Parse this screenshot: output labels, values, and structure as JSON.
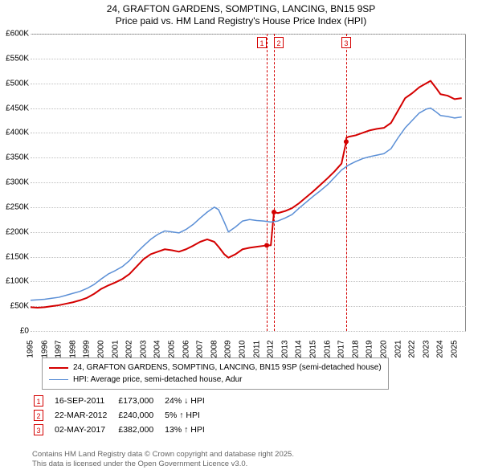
{
  "title": {
    "line1": "24, GRAFTON GARDENS, SOMPTING, LANCING, BN15 9SP",
    "line2": "Price paid vs. HM Land Registry's House Price Index (HPI)",
    "fontsize": 12
  },
  "chart": {
    "type": "line",
    "background_color": "#ffffff",
    "grid_color": "#c0c0c0",
    "axis_color": "#000000",
    "label_fontsize": 10,
    "x": {
      "min": 1995,
      "max": 2025.8,
      "ticks": [
        1995,
        1996,
        1997,
        1998,
        1999,
        2000,
        2001,
        2002,
        2003,
        2004,
        2005,
        2006,
        2007,
        2008,
        2009,
        2010,
        2011,
        2012,
        2013,
        2014,
        2015,
        2016,
        2017,
        2018,
        2019,
        2020,
        2021,
        2022,
        2023,
        2024,
        2025
      ]
    },
    "y": {
      "min": 0,
      "max": 600000,
      "ticks": [
        {
          "v": 0,
          "label": "£0"
        },
        {
          "v": 50000,
          "label": "£50K"
        },
        {
          "v": 100000,
          "label": "£100K"
        },
        {
          "v": 150000,
          "label": "£150K"
        },
        {
          "v": 200000,
          "label": "£200K"
        },
        {
          "v": 250000,
          "label": "£250K"
        },
        {
          "v": 300000,
          "label": "£300K"
        },
        {
          "v": 350000,
          "label": "£350K"
        },
        {
          "v": 400000,
          "label": "£400K"
        },
        {
          "v": 450000,
          "label": "£450K"
        },
        {
          "v": 500000,
          "label": "£500K"
        },
        {
          "v": 550000,
          "label": "£550K"
        },
        {
          "v": 600000,
          "label": "£600K"
        }
      ]
    },
    "series": [
      {
        "name": "price_paid",
        "color": "#d40000",
        "width": 2,
        "legend": "24, GRAFTON GARDENS, SOMPTING, LANCING, BN15 9SP (semi-detached house)",
        "points": [
          [
            1995,
            48000
          ],
          [
            1995.5,
            47000
          ],
          [
            1996,
            48000
          ],
          [
            1996.5,
            50000
          ],
          [
            1997,
            52000
          ],
          [
            1997.5,
            55000
          ],
          [
            1998,
            58000
          ],
          [
            1998.5,
            62000
          ],
          [
            1999,
            67000
          ],
          [
            1999.5,
            75000
          ],
          [
            2000,
            85000
          ],
          [
            2000.5,
            92000
          ],
          [
            2001,
            98000
          ],
          [
            2001.5,
            105000
          ],
          [
            2002,
            115000
          ],
          [
            2002.5,
            130000
          ],
          [
            2003,
            145000
          ],
          [
            2003.5,
            155000
          ],
          [
            2004,
            160000
          ],
          [
            2004.5,
            165000
          ],
          [
            2005,
            163000
          ],
          [
            2005.5,
            160000
          ],
          [
            2006,
            165000
          ],
          [
            2006.5,
            172000
          ],
          [
            2007,
            180000
          ],
          [
            2007.5,
            185000
          ],
          [
            2008,
            180000
          ],
          [
            2008.3,
            170000
          ],
          [
            2008.7,
            155000
          ],
          [
            2009,
            148000
          ],
          [
            2009.5,
            155000
          ],
          [
            2010,
            165000
          ],
          [
            2010.5,
            168000
          ],
          [
            2011,
            170000
          ],
          [
            2011.5,
            172000
          ],
          [
            2011.71,
            173000
          ],
          [
            2011.72,
            173000
          ],
          [
            2012,
            173000
          ],
          [
            2012.22,
            240000
          ],
          [
            2012.23,
            240000
          ],
          [
            2012.5,
            238000
          ],
          [
            2013,
            242000
          ],
          [
            2013.5,
            248000
          ],
          [
            2014,
            258000
          ],
          [
            2014.5,
            270000
          ],
          [
            2015,
            282000
          ],
          [
            2015.5,
            295000
          ],
          [
            2016,
            308000
          ],
          [
            2016.5,
            322000
          ],
          [
            2017,
            338000
          ],
          [
            2017.33,
            382000
          ],
          [
            2017.34,
            390000
          ],
          [
            2017.5,
            392000
          ],
          [
            2018,
            395000
          ],
          [
            2018.5,
            400000
          ],
          [
            2019,
            405000
          ],
          [
            2019.5,
            408000
          ],
          [
            2020,
            410000
          ],
          [
            2020.5,
            420000
          ],
          [
            2021,
            445000
          ],
          [
            2021.5,
            470000
          ],
          [
            2022,
            480000
          ],
          [
            2022.5,
            492000
          ],
          [
            2023,
            500000
          ],
          [
            2023.3,
            505000
          ],
          [
            2023.7,
            490000
          ],
          [
            2024,
            478000
          ],
          [
            2024.5,
            475000
          ],
          [
            2025,
            468000
          ],
          [
            2025.5,
            470000
          ]
        ]
      },
      {
        "name": "hpi",
        "color": "#5b8fd6",
        "width": 1.5,
        "legend": "HPI: Average price, semi-detached house, Adur",
        "points": [
          [
            1995,
            62000
          ],
          [
            1995.5,
            63000
          ],
          [
            1996,
            64000
          ],
          [
            1996.5,
            66000
          ],
          [
            1997,
            68000
          ],
          [
            1997.5,
            72000
          ],
          [
            1998,
            76000
          ],
          [
            1998.5,
            80000
          ],
          [
            1999,
            86000
          ],
          [
            1999.5,
            94000
          ],
          [
            2000,
            105000
          ],
          [
            2000.5,
            115000
          ],
          [
            2001,
            122000
          ],
          [
            2001.5,
            130000
          ],
          [
            2002,
            142000
          ],
          [
            2002.5,
            158000
          ],
          [
            2003,
            172000
          ],
          [
            2003.5,
            185000
          ],
          [
            2004,
            195000
          ],
          [
            2004.5,
            202000
          ],
          [
            2005,
            200000
          ],
          [
            2005.5,
            198000
          ],
          [
            2006,
            205000
          ],
          [
            2006.5,
            215000
          ],
          [
            2007,
            228000
          ],
          [
            2007.5,
            240000
          ],
          [
            2008,
            250000
          ],
          [
            2008.3,
            245000
          ],
          [
            2008.7,
            220000
          ],
          [
            2009,
            200000
          ],
          [
            2009.5,
            210000
          ],
          [
            2010,
            222000
          ],
          [
            2010.5,
            225000
          ],
          [
            2011,
            223000
          ],
          [
            2011.5,
            222000
          ],
          [
            2012,
            220000
          ],
          [
            2012.5,
            222000
          ],
          [
            2013,
            228000
          ],
          [
            2013.5,
            235000
          ],
          [
            2014,
            248000
          ],
          [
            2014.5,
            260000
          ],
          [
            2015,
            272000
          ],
          [
            2015.5,
            283000
          ],
          [
            2016,
            295000
          ],
          [
            2016.5,
            310000
          ],
          [
            2017,
            325000
          ],
          [
            2017.5,
            335000
          ],
          [
            2018,
            342000
          ],
          [
            2018.5,
            348000
          ],
          [
            2019,
            352000
          ],
          [
            2019.5,
            355000
          ],
          [
            2020,
            358000
          ],
          [
            2020.5,
            368000
          ],
          [
            2021,
            390000
          ],
          [
            2021.5,
            410000
          ],
          [
            2022,
            425000
          ],
          [
            2022.5,
            440000
          ],
          [
            2023,
            448000
          ],
          [
            2023.3,
            450000
          ],
          [
            2023.7,
            442000
          ],
          [
            2024,
            435000
          ],
          [
            2024.5,
            433000
          ],
          [
            2025,
            430000
          ],
          [
            2025.5,
            432000
          ]
        ]
      }
    ],
    "markers": [
      {
        "n": "1",
        "x": 2011.71,
        "color": "#d40000"
      },
      {
        "n": "2",
        "x": 2012.22,
        "color": "#d40000"
      },
      {
        "n": "3",
        "x": 2017.33,
        "color": "#d40000"
      }
    ]
  },
  "events": [
    {
      "n": "1",
      "date": "16-SEP-2011",
      "price": "£173,000",
      "delta": "24% ↓ HPI",
      "color": "#d40000"
    },
    {
      "n": "2",
      "date": "22-MAR-2012",
      "price": "£240,000",
      "delta": "5% ↑ HPI",
      "color": "#d40000"
    },
    {
      "n": "3",
      "date": "02-MAY-2017",
      "price": "£382,000",
      "delta": "13% ↑ HPI",
      "color": "#d40000"
    }
  ],
  "footer": {
    "line1": "Contains HM Land Registry data © Crown copyright and database right 2025.",
    "line2": "This data is licensed under the Open Government Licence v3.0.",
    "color": "#666666"
  }
}
